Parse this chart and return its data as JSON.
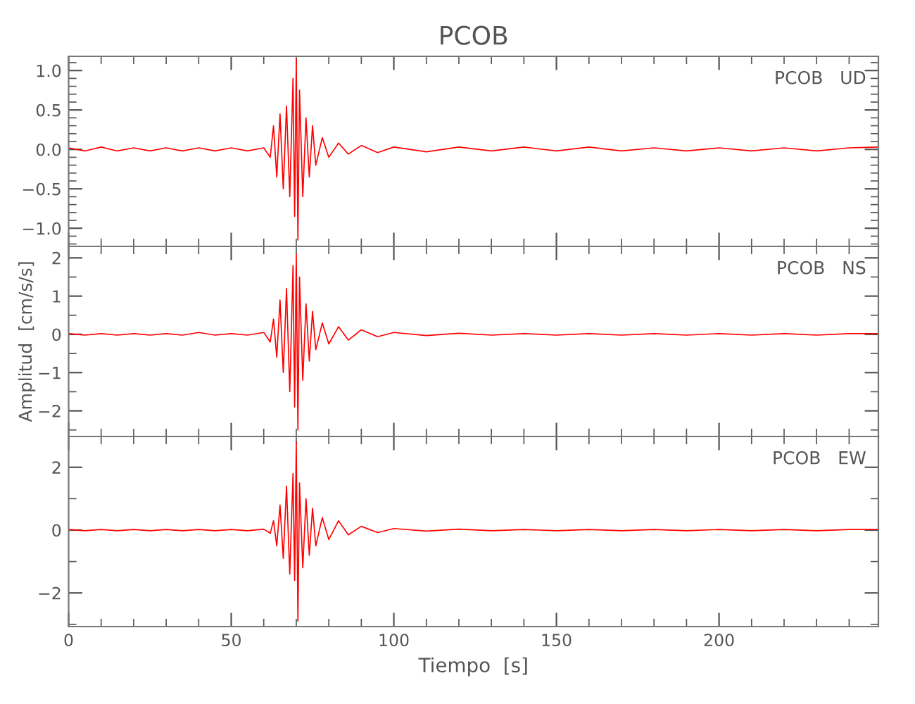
{
  "chart_data": [
    {
      "type": "line",
      "title": "PCOB",
      "annotations": [
        "PCOB   UD"
      ],
      "tick_labels": "y",
      "grid": false,
      "x": [
        0,
        5,
        10,
        15,
        20,
        25,
        30,
        35,
        40,
        45,
        50,
        55,
        60,
        62,
        63,
        64,
        65,
        66,
        67,
        68,
        69,
        69.5,
        70,
        70.5,
        71,
        72,
        73,
        74,
        75,
        76,
        78,
        80,
        83,
        86,
        90,
        95,
        100,
        110,
        120,
        130,
        140,
        150,
        160,
        170,
        180,
        190,
        200,
        210,
        220,
        230,
        240,
        249
      ],
      "series": [
        {
          "color": "#ff0000",
          "values": [
            0.02,
            -0.02,
            0.03,
            -0.02,
            0.02,
            -0.02,
            0.02,
            -0.02,
            0.02,
            -0.02,
            0.02,
            -0.02,
            0.02,
            -0.1,
            0.3,
            -0.35,
            0.45,
            -0.5,
            0.55,
            -0.6,
            0.9,
            -0.85,
            1.15,
            -1.15,
            0.75,
            -0.6,
            0.4,
            -0.35,
            0.3,
            -0.2,
            0.15,
            -0.1,
            0.08,
            -0.06,
            0.05,
            -0.04,
            0.03,
            -0.03,
            0.03,
            -0.02,
            0.03,
            -0.02,
            0.03,
            -0.02,
            0.02,
            -0.02,
            0.02,
            -0.02,
            0.02,
            -0.02,
            0.02,
            0.03
          ]
        }
      ],
      "xlim": [
        0,
        249
      ],
      "xticks": [
        0,
        50,
        100,
        150,
        200
      ],
      "ylim": [
        -1.23,
        1.18
      ],
      "yticks": [
        {
          "value": -1,
          "label": "−1.0"
        },
        {
          "value": -0.5,
          "label": "−0.5"
        },
        {
          "value": 0,
          "label": "0.0"
        },
        {
          "value": 0.5,
          "label": "0.5"
        },
        {
          "value": 1,
          "label": "1.0"
        }
      ]
    },
    {
      "type": "line",
      "ylabel": "Amplitud  [cm/s/s]",
      "annotations": [
        "PCOB   NS"
      ],
      "tick_labels": "y",
      "grid": false,
      "x": [
        0,
        5,
        10,
        15,
        20,
        25,
        30,
        35,
        40,
        45,
        50,
        55,
        60,
        62,
        63,
        64,
        65,
        66,
        67,
        68,
        69,
        69.5,
        70,
        70.5,
        71,
        72,
        73,
        74,
        75,
        76,
        78,
        80,
        83,
        86,
        90,
        95,
        100,
        110,
        120,
        130,
        140,
        150,
        160,
        170,
        180,
        190,
        200,
        210,
        220,
        230,
        240,
        249
      ],
      "series": [
        {
          "color": "#ff0000",
          "values": [
            0.02,
            -0.02,
            0.02,
            -0.02,
            0.02,
            -0.02,
            0.02,
            -0.02,
            0.05,
            -0.02,
            0.02,
            -0.02,
            0.05,
            -0.2,
            0.4,
            -0.6,
            0.9,
            -1.0,
            1.2,
            -1.5,
            1.8,
            -1.9,
            2.1,
            -2.5,
            1.5,
            -1.2,
            0.8,
            -0.7,
            0.6,
            -0.4,
            0.3,
            -0.25,
            0.2,
            -0.15,
            0.12,
            -0.06,
            0.05,
            -0.03,
            0.03,
            -0.02,
            0.02,
            -0.02,
            0.02,
            -0.02,
            0.02,
            -0.02,
            0.02,
            -0.02,
            0.02,
            -0.02,
            0.02,
            0.02
          ]
        }
      ],
      "xlim": [
        0,
        249
      ],
      "xticks": [
        0,
        50,
        100,
        150,
        200
      ],
      "ylim": [
        -2.67,
        2.3
      ],
      "yticks": [
        {
          "value": -2,
          "label": "−2"
        },
        {
          "value": -1,
          "label": "−1"
        },
        0,
        1,
        2
      ]
    },
    {
      "type": "line",
      "xlabel": "Tiempo  [s]",
      "annotations": [
        "PCOB   EW"
      ],
      "grid": false,
      "x": [
        0,
        5,
        10,
        15,
        20,
        25,
        30,
        35,
        40,
        45,
        50,
        55,
        60,
        62,
        63,
        64,
        65,
        66,
        67,
        68,
        69,
        69.5,
        70,
        70.5,
        71,
        72,
        73,
        74,
        75,
        76,
        78,
        80,
        83,
        86,
        90,
        95,
        100,
        110,
        120,
        130,
        140,
        150,
        160,
        170,
        180,
        190,
        200,
        210,
        220,
        230,
        240,
        249
      ],
      "series": [
        {
          "color": "#ff0000",
          "values": [
            0.02,
            -0.02,
            0.02,
            -0.02,
            0.02,
            -0.02,
            0.02,
            -0.02,
            0.02,
            -0.02,
            0.02,
            -0.02,
            0.03,
            -0.1,
            0.3,
            -0.5,
            0.8,
            -0.9,
            1.4,
            -1.4,
            1.8,
            -1.6,
            2.8,
            -2.9,
            1.5,
            -1.2,
            1.0,
            -0.8,
            0.7,
            -0.5,
            0.4,
            -0.3,
            0.3,
            -0.15,
            0.12,
            -0.08,
            0.05,
            -0.03,
            0.03,
            -0.02,
            0.02,
            -0.02,
            0.02,
            -0.02,
            0.02,
            -0.02,
            0.02,
            -0.02,
            0.02,
            -0.02,
            0.02,
            0.02
          ]
        }
      ],
      "xlim": [
        0,
        249
      ],
      "xticks": [
        0,
        50,
        100,
        150,
        200
      ],
      "ylim": [
        -3.07,
        2.98
      ],
      "yticks": [
        {
          "value": -2,
          "label": "−2"
        },
        0,
        2
      ]
    }
  ]
}
